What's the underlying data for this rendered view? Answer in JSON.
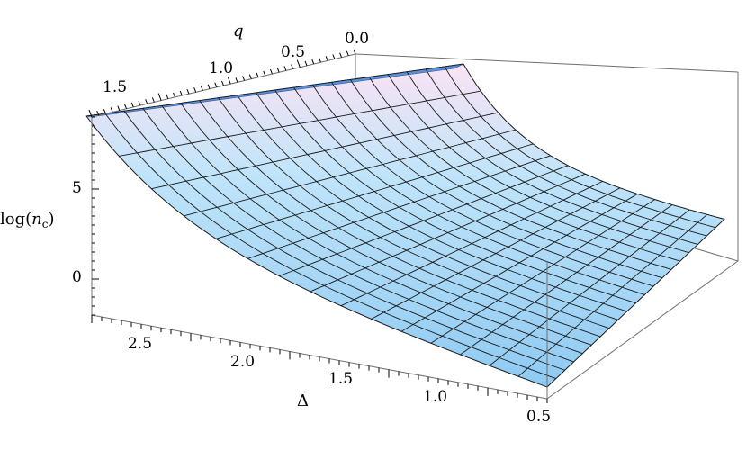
{
  "chart_data": {
    "type": "surface3d",
    "title": "",
    "axes": {
      "x": {
        "label": "Δ",
        "range": [
          0.5,
          2.8
        ],
        "ticks": [
          "2.5",
          "2.0",
          "1.5",
          "1.0",
          "0.5"
        ]
      },
      "y": {
        "label": "q",
        "range": [
          0.0,
          1.9
        ],
        "ticks": [
          "1.5",
          "1.0",
          "0.5",
          "0.0"
        ]
      },
      "z": {
        "label_main": "log(",
        "label_var": "n",
        "label_sub": "c",
        "label_close": ")",
        "range": [
          -2,
          9
        ],
        "ticks": [
          "5",
          "0"
        ]
      }
    },
    "surface": {
      "description_values": [
        {
          "delta": 0.5,
          "q": 0.0,
          "log_nc": 9.0
        },
        {
          "delta": 0.5,
          "q": 1.9,
          "log_nc": 9.0
        },
        {
          "delta": 1.2,
          "q": 0.0,
          "log_nc": 3.5
        },
        {
          "delta": 2.8,
          "q": 1.9,
          "log_nc": -2.0
        },
        {
          "delta": 2.8,
          "q": 0.0,
          "log_nc": 2.5
        }
      ],
      "grid_lines_delta": 15,
      "grid_lines_q": 20
    },
    "colors": {
      "surface_low": "#8fcaf2",
      "surface_mid": "#bfe4fa",
      "surface_high": "#fbe3f4",
      "top_face": "#5a90d6",
      "mesh": "#1a1a1a",
      "box": "#707070"
    },
    "grid": false,
    "legend": "none"
  }
}
